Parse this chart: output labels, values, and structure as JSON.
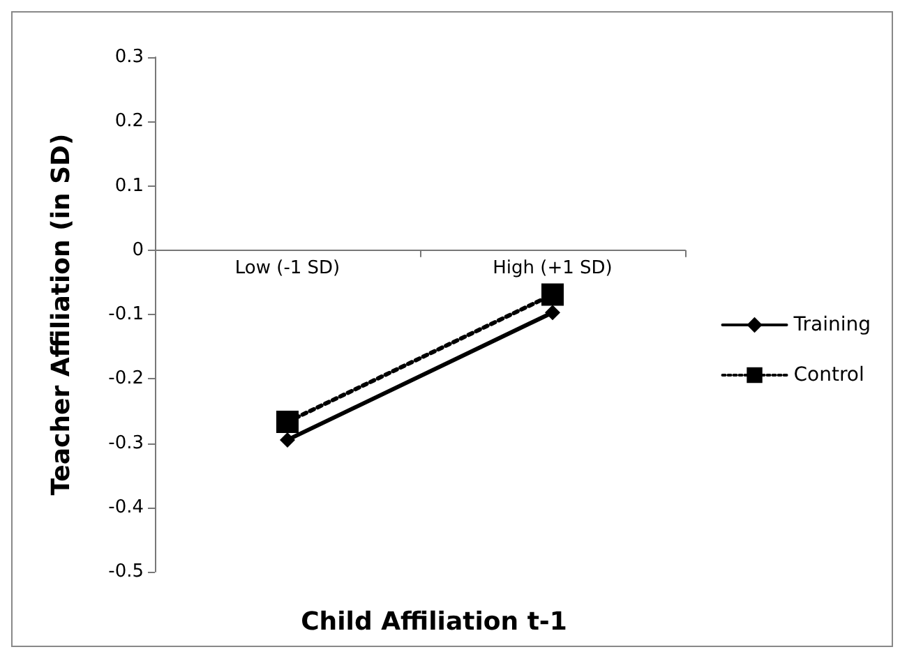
{
  "chart_data": {
    "type": "line",
    "xlabel": "Child Affiliation t-1",
    "ylabel": "Teacher Affiliation (in SD)",
    "categories": [
      "Low (-1 SD)",
      "High (+1 SD)"
    ],
    "series": [
      {
        "name": "Training",
        "color": "#000000",
        "values": [
          -0.295,
          -0.097
        ],
        "marker": "diamond",
        "line_style": "solid"
      },
      {
        "name": "Control",
        "color": "#000000",
        "values": [
          -0.267,
          -0.069
        ],
        "marker": "square",
        "line_style": "dotted"
      }
    ],
    "ylim": [
      -0.5,
      0.3
    ],
    "yticks": [
      -0.5,
      -0.4,
      -0.3,
      -0.2,
      -0.1,
      0,
      0.1,
      0.2,
      0.3
    ],
    "grid": false,
    "legend": "right"
  }
}
